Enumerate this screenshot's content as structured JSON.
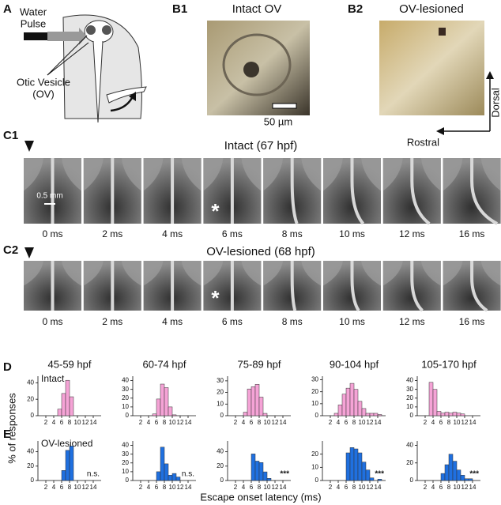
{
  "panel_labels": {
    "a": "A",
    "b1": "B1",
    "b2": "B2",
    "c1": "C1",
    "c2": "C2",
    "d": "D",
    "e": "E"
  },
  "panel_a": {
    "pulse": [
      "Water",
      "Pulse"
    ],
    "vesicle": [
      "Otic Vesicle",
      "(OV)"
    ]
  },
  "panel_b1": {
    "title": "Intact OV",
    "scale_bar": "50 µm"
  },
  "panel_b2": {
    "title": "OV-lesioned",
    "dorsal": "Dorsal",
    "rostral": "Rostral"
  },
  "panel_c": {
    "titles": [
      "Intact (67 hpf)",
      "OV-lesioned (68 hpf)"
    ],
    "scale_bar": "0.5 mm",
    "times": [
      "0 ms",
      "2 ms",
      "4 ms",
      "6 ms",
      "8 ms",
      "10 ms",
      "12 ms",
      "16 ms"
    ],
    "marker": "*"
  },
  "histograms": {
    "column_titles": [
      "45-59 hpf",
      "60-74 hpf",
      "75-89 hpf",
      "90-104 hpf",
      "105-170 hpf"
    ],
    "row_labels": [
      "Intact",
      "OV-lesioned"
    ],
    "y_label": "% of responses",
    "x_label": "Escape onset latency (ms)"
  },
  "chart_data": [
    {
      "type": "histogram",
      "color": "#f5a3d6",
      "bins": [
        5,
        6,
        7,
        8,
        9
      ],
      "values": [
        8,
        27,
        43,
        23
      ],
      "xlim": [
        0,
        16
      ],
      "xticks": [
        2,
        4,
        6,
        8,
        10,
        12,
        14
      ],
      "ylim": [
        0,
        48
      ],
      "yticks": [
        0,
        20,
        40
      ]
    },
    {
      "type": "histogram",
      "color": "#f5a3d6",
      "bins": [
        5,
        6,
        7,
        8,
        9,
        10,
        11
      ],
      "values": [
        2,
        19,
        36,
        32,
        10,
        1
      ],
      "xlim": [
        0,
        16
      ],
      "xticks": [
        2,
        4,
        6,
        8,
        10,
        12,
        14
      ],
      "ylim": [
        0,
        45
      ],
      "yticks": [
        0,
        10,
        20,
        30,
        40
      ]
    },
    {
      "type": "histogram",
      "color": "#f5a3d6",
      "bins": [
        4,
        5,
        6,
        7,
        8,
        9,
        10
      ],
      "values": [
        3,
        23,
        25,
        27,
        16,
        2
      ],
      "xlim": [
        0,
        16
      ],
      "xticks": [
        2,
        4,
        6,
        8,
        10,
        12,
        14
      ],
      "ylim": [
        0,
        34
      ],
      "yticks": [
        0,
        10,
        20,
        30
      ]
    },
    {
      "type": "histogram",
      "color": "#f5a3d6",
      "bins": [
        3,
        4,
        5,
        6,
        7,
        8,
        9,
        10,
        11,
        12,
        13,
        14,
        15
      ],
      "values": [
        2,
        9,
        18,
        23,
        27,
        22,
        12,
        6,
        2,
        2,
        2,
        1
      ],
      "xlim": [
        0,
        16
      ],
      "xticks": [
        2,
        4,
        6,
        8,
        10,
        12,
        14
      ],
      "ylim": [
        0,
        33
      ],
      "yticks": [
        0,
        10,
        20,
        30
      ]
    },
    {
      "type": "histogram",
      "color": "#f5a3d6",
      "bins": [
        3,
        4,
        5,
        6,
        7,
        8,
        9,
        10,
        11,
        12
      ],
      "values": [
        38,
        30,
        5,
        3,
        4,
        3,
        4,
        3,
        2
      ],
      "xlim": [
        0,
        16
      ],
      "xticks": [
        2,
        4,
        6,
        8,
        10,
        12,
        14
      ],
      "ylim": [
        0,
        45
      ],
      "yticks": [
        0,
        10,
        20,
        30,
        40
      ]
    },
    {
      "type": "histogram",
      "color": "#1f70e0",
      "bins": [
        6,
        7,
        8,
        9
      ],
      "values": [
        14,
        42,
        48
      ],
      "xlim": [
        0,
        16
      ],
      "xticks": [
        2,
        4,
        6,
        8,
        10,
        12,
        14
      ],
      "ylim": [
        0,
        55
      ],
      "yticks": [
        0,
        20,
        40
      ],
      "annotation": "n.s."
    },
    {
      "type": "histogram",
      "color": "#1f70e0",
      "bins": [
        6,
        7,
        8,
        9,
        10,
        11,
        12
      ],
      "values": [
        10,
        38,
        19,
        6,
        8,
        4
      ],
      "xlim": [
        0,
        16
      ],
      "xticks": [
        2,
        4,
        6,
        8,
        10,
        12,
        14
      ],
      "ylim": [
        0,
        45
      ],
      "yticks": [
        0,
        10,
        20,
        30,
        40
      ],
      "annotation": "n.s."
    },
    {
      "type": "histogram",
      "color": "#1f70e0",
      "bins": [
        6,
        7,
        8,
        9,
        10,
        11
      ],
      "values": [
        37,
        27,
        25,
        12,
        3
      ],
      "xlim": [
        0,
        16
      ],
      "xticks": [
        2,
        4,
        6,
        8,
        10,
        12,
        14
      ],
      "ylim": [
        0,
        55
      ],
      "yticks": [
        0,
        20,
        40
      ],
      "annotation": "***"
    },
    {
      "type": "histogram",
      "color": "#1f70e0",
      "bins": [
        6,
        7,
        8,
        9,
        10,
        11,
        12,
        13,
        14,
        15
      ],
      "values": [
        21,
        25,
        24,
        21,
        14,
        8,
        2,
        0,
        1
      ],
      "xlim": [
        0,
        16
      ],
      "xticks": [
        2,
        4,
        6,
        8,
        10,
        12,
        14
      ],
      "ylim": [
        0,
        30
      ],
      "yticks": [
        0,
        10,
        20
      ],
      "annotation": "***"
    },
    {
      "type": "histogram",
      "color": "#1f70e0",
      "bins": [
        6,
        7,
        8,
        9,
        10,
        11,
        12,
        13,
        14
      ],
      "values": [
        8,
        18,
        30,
        22,
        12,
        6,
        2,
        2
      ],
      "xlim": [
        0,
        16
      ],
      "xticks": [
        2,
        4,
        6,
        8,
        10,
        12,
        14
      ],
      "ylim": [
        0,
        45
      ],
      "yticks": [
        0,
        20,
        40
      ],
      "annotation": "***"
    }
  ]
}
